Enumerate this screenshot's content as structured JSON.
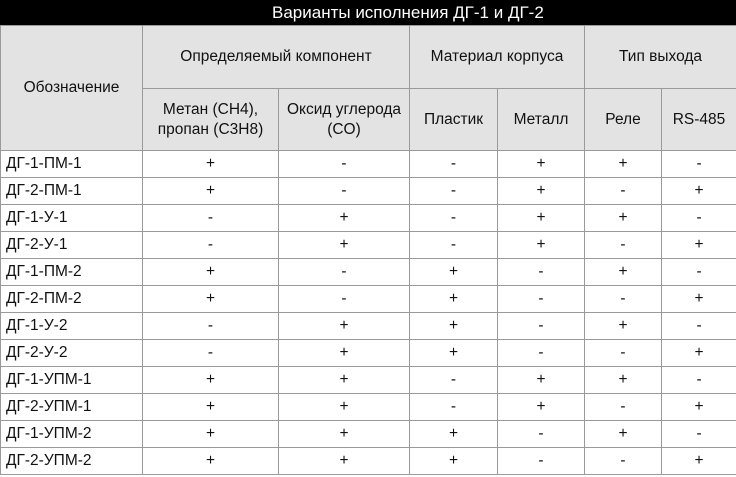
{
  "title": "Варианты исполнения ДГ-1 и ДГ-2",
  "headers": {
    "designation": "Обозначение",
    "component": "Определяемый компонент",
    "material": "Материал корпуса",
    "output": "Тип выхода",
    "sub": [
      "Метан (CH4), пропан (C3H8)",
      "Оксид углерода (CO)",
      "Пластик",
      "Металл",
      "Реле",
      "RS-485"
    ]
  },
  "rows": [
    {
      "name": "ДГ-1-ПМ-1",
      "cells": [
        "+",
        "-",
        "-",
        "+",
        "+",
        "-"
      ]
    },
    {
      "name": "ДГ-2-ПМ-1",
      "cells": [
        "+",
        "-",
        "-",
        "+",
        "-",
        "+"
      ]
    },
    {
      "name": "ДГ-1-У-1",
      "cells": [
        "-",
        "+",
        "-",
        "+",
        "+",
        "-"
      ]
    },
    {
      "name": "ДГ-2-У-1",
      "cells": [
        "-",
        "+",
        "-",
        "+",
        "-",
        "+"
      ]
    },
    {
      "name": "ДГ-1-ПМ-2",
      "cells": [
        "+",
        "-",
        "+",
        "-",
        "+",
        "-"
      ]
    },
    {
      "name": "ДГ-2-ПМ-2",
      "cells": [
        "+",
        "-",
        "+",
        "-",
        "-",
        "+"
      ]
    },
    {
      "name": "ДГ-1-У-2",
      "cells": [
        "-",
        "+",
        "+",
        "-",
        "+",
        "-"
      ]
    },
    {
      "name": "ДГ-2-У-2",
      "cells": [
        "-",
        "+",
        "+",
        "-",
        "-",
        "+"
      ]
    },
    {
      "name": "ДГ-1-УПМ-1",
      "cells": [
        "+",
        "+",
        "-",
        "+",
        "+",
        "-"
      ]
    },
    {
      "name": "ДГ-2-УПМ-1",
      "cells": [
        "+",
        "+",
        "-",
        "+",
        "-",
        "+"
      ]
    },
    {
      "name": "ДГ-1-УПМ-2",
      "cells": [
        "+",
        "+",
        "+",
        "-",
        "+",
        "-"
      ]
    },
    {
      "name": "ДГ-2-УПМ-2",
      "cells": [
        "+",
        "+",
        "+",
        "-",
        "-",
        "+"
      ]
    }
  ]
}
